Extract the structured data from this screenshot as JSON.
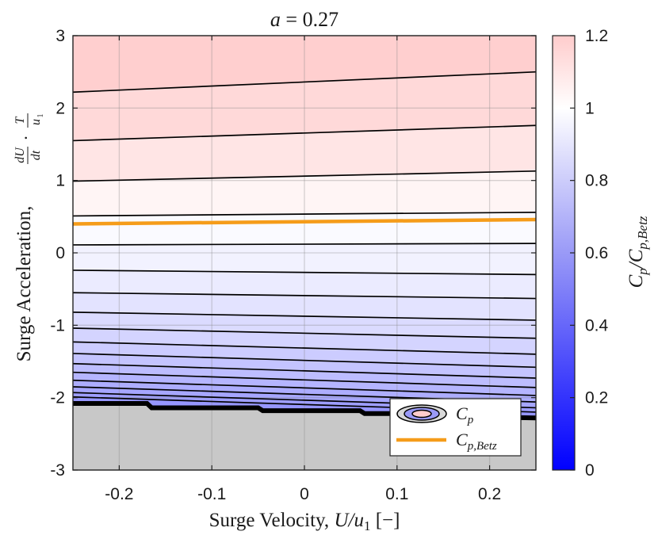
{
  "chart_data": {
    "type": "contour",
    "title": "a = 0.27",
    "title_symbol": "a",
    "title_value": "0.27",
    "xlabel": "Surge Velocity, U/u1 [−]",
    "xlabel_text": "Surge Velocity,",
    "xlabel_math": "U/u",
    "xlabel_sub": "1",
    "xlabel_units": "[−]",
    "ylabel": "Surge Acceleration, dU/dt · T/u1",
    "ylabel_text": "Surge Acceleration,",
    "colorbar_label": "Cp/Cp,Betz",
    "xlim": [
      -0.25,
      0.25
    ],
    "ylim": [
      -3,
      3
    ],
    "xticks": [
      -0.2,
      -0.1,
      0,
      0.1,
      0.2
    ],
    "xtick_labels": [
      "-0.2",
      "-0.1",
      "0",
      "0.1",
      "0.2"
    ],
    "yticks": [
      -3,
      -2,
      -1,
      0,
      1,
      2,
      3
    ],
    "ytick_labels": [
      "-3",
      "-2",
      "-1",
      "0",
      "1",
      "2",
      "3"
    ],
    "colorbar_ticks": [
      0,
      0.2,
      0.4,
      0.6,
      0.8,
      1,
      1.2
    ],
    "colorbar_tick_labels": [
      "0",
      "0.2",
      "0.4",
      "0.6",
      "0.8",
      "1",
      "1.2"
    ],
    "colorbar_range": [
      0,
      1.2
    ],
    "grid": true,
    "colors": {
      "low": "#0000ff",
      "mid": "#ffffff",
      "high": "#ffcccc",
      "undefined_region": "#c8c8c8",
      "contour": "#000000",
      "betz_line": "#f59c1a"
    },
    "contour_lines": [
      {
        "y_left": 2.22,
        "y_right": 2.5
      },
      {
        "y_left": 1.55,
        "y_right": 1.76
      },
      {
        "y_left": 0.99,
        "y_right": 1.13
      },
      {
        "y_left": 0.51,
        "y_right": 0.56
      },
      {
        "y_left": 0.11,
        "y_right": 0.13
      },
      {
        "y_left": -0.24,
        "y_right": -0.3
      },
      {
        "y_left": -0.55,
        "y_right": -0.63
      },
      {
        "y_left": -0.82,
        "y_right": -0.93
      },
      {
        "y_left": -1.04,
        "y_right": -1.18
      },
      {
        "y_left": -1.23,
        "y_right": -1.4
      },
      {
        "y_left": -1.39,
        "y_right": -1.58
      },
      {
        "y_left": -1.53,
        "y_right": -1.73
      },
      {
        "y_left": -1.65,
        "y_right": -1.86
      },
      {
        "y_left": -1.76,
        "y_right": -1.97
      },
      {
        "y_left": -1.85,
        "y_right": -2.06
      },
      {
        "y_left": -1.93,
        "y_right": -2.14
      },
      {
        "y_left": -1.99,
        "y_right": -2.2
      }
    ],
    "boundary": [
      [
        -0.25,
        -2.08
      ],
      [
        -0.17,
        -2.08
      ],
      [
        -0.165,
        -2.14
      ],
      [
        -0.05,
        -2.14
      ],
      [
        -0.045,
        -2.18
      ],
      [
        0.06,
        -2.18
      ],
      [
        0.065,
        -2.22
      ],
      [
        0.16,
        -2.22
      ],
      [
        0.165,
        -2.26
      ],
      [
        0.25,
        -2.28
      ]
    ],
    "betz_line": {
      "y_left": 0.4,
      "y_right": 0.46
    },
    "series": [
      {
        "name": "Cp"
      },
      {
        "name": "Cp,Betz"
      }
    ],
    "legend_position": "bottom-right"
  }
}
